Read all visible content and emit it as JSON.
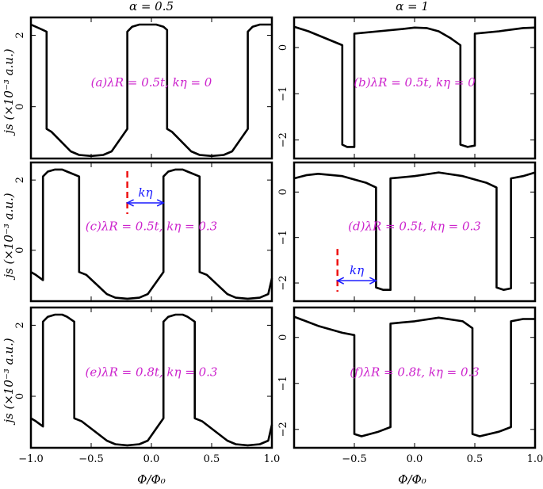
{
  "figure": {
    "column_titles": [
      "α = 0.5",
      "α = 1"
    ],
    "ylabel": "js (×10⁻³ a.u.)",
    "xlabel": "Φ/Φ₀",
    "x_ticks": [
      "−1.0",
      "−0.5",
      "0.0",
      "0.5",
      "1.0"
    ],
    "kη_label": "kη",
    "colors": {
      "curve": "#000000",
      "annotation": "#cc22cc",
      "arrow": "#1a1aff",
      "marker": "#ee1111"
    }
  },
  "chart_data": [
    {
      "type": "line",
      "title": "(a)λR = 0.5t, kη = 0",
      "xlim": [
        -1,
        1
      ],
      "ylim": [
        -1.45,
        2.5
      ],
      "y_ticks": [
        {
          "v": 2,
          "t": "2"
        },
        {
          "v": 0,
          "t": "0"
        }
      ],
      "x": [
        -1.0,
        -0.9,
        -0.87,
        -0.87,
        -0.83,
        -0.67,
        -0.6,
        -0.5,
        -0.4,
        -0.33,
        -0.2,
        -0.2,
        -0.16,
        -0.1,
        -0.04,
        0.0,
        0.04,
        0.1,
        0.13,
        0.13,
        0.17,
        0.33,
        0.4,
        0.5,
        0.6,
        0.67,
        0.8,
        0.8,
        0.84,
        0.9,
        0.96,
        1.0
      ],
      "y": [
        2.3,
        2.15,
        2.1,
        -0.62,
        -0.7,
        -1.25,
        -1.35,
        -1.38,
        -1.35,
        -1.25,
        -0.62,
        2.1,
        2.24,
        2.3,
        2.3,
        2.3,
        2.3,
        2.24,
        2.15,
        -0.62,
        -0.7,
        -1.25,
        -1.35,
        -1.38,
        -1.35,
        -1.25,
        -0.62,
        2.1,
        2.24,
        2.3,
        2.3,
        2.3
      ]
    },
    {
      "type": "line",
      "title": "(b)λR = 0.5t, kη = 0",
      "xlim": [
        -1,
        1
      ],
      "ylim": [
        -2.4,
        0.65
      ],
      "y_ticks": [
        {
          "v": 0,
          "t": "0"
        },
        {
          "v": -1,
          "t": "−1"
        },
        {
          "v": -2,
          "t": "−2"
        }
      ],
      "x": [
        -1.0,
        -0.88,
        -0.6,
        -0.6,
        -0.56,
        -0.5,
        -0.5,
        -0.3,
        -0.1,
        0.0,
        0.1,
        0.2,
        0.3,
        0.38,
        0.38,
        0.44,
        0.5,
        0.5,
        0.7,
        0.9,
        1.0
      ],
      "y": [
        0.45,
        0.35,
        0.05,
        -2.1,
        -2.15,
        -2.15,
        0.3,
        0.35,
        0.4,
        0.43,
        0.42,
        0.35,
        0.2,
        0.05,
        -2.1,
        -2.15,
        -2.12,
        0.3,
        0.35,
        0.42,
        0.43
      ]
    },
    {
      "type": "line",
      "title": "(c)λR = 0.5t, kη = 0.3",
      "xlim": [
        -1,
        1
      ],
      "ylim": [
        -1.45,
        2.5
      ],
      "y_ticks": [
        {
          "v": 2,
          "t": "2"
        },
        {
          "v": 0,
          "t": "0"
        }
      ],
      "x": [
        -1.0,
        -0.96,
        -0.9,
        -0.9,
        -0.86,
        -0.8,
        -0.74,
        -0.7,
        -0.6,
        -0.6,
        -0.54,
        -0.37,
        -0.3,
        -0.2,
        -0.1,
        -0.03,
        0.1,
        0.1,
        0.14,
        0.2,
        0.26,
        0.3,
        0.4,
        0.4,
        0.46,
        0.63,
        0.7,
        0.8,
        0.9,
        0.97,
        1.0
      ],
      "y": [
        -0.62,
        -0.7,
        -0.85,
        2.1,
        2.24,
        2.3,
        2.3,
        2.24,
        2.1,
        -0.62,
        -0.7,
        -1.25,
        -1.35,
        -1.38,
        -1.35,
        -1.25,
        -0.62,
        2.1,
        2.24,
        2.3,
        2.3,
        2.24,
        2.1,
        -0.62,
        -0.7,
        -1.25,
        -1.35,
        -1.38,
        -1.35,
        -1.25,
        -0.8
      ],
      "marker_x": -0.2,
      "arrow": {
        "from": -0.2,
        "to": 0.1,
        "y": 1.35
      }
    },
    {
      "type": "line",
      "title": "(d)λR = 0.5t, kη = 0.3",
      "xlim": [
        -1,
        1
      ],
      "ylim": [
        -2.4,
        0.65
      ],
      "y_ticks": [
        {
          "v": 0,
          "t": "0"
        },
        {
          "v": -1,
          "t": "−1"
        },
        {
          "v": -2,
          "t": "−2"
        }
      ],
      "x": [
        -1.0,
        -0.9,
        -0.8,
        -0.6,
        -0.4,
        -0.32,
        -0.32,
        -0.26,
        -0.2,
        -0.2,
        0.0,
        0.2,
        0.4,
        0.6,
        0.68,
        0.68,
        0.74,
        0.8,
        0.8,
        0.9,
        1.0
      ],
      "y": [
        0.3,
        0.37,
        0.4,
        0.35,
        0.2,
        0.1,
        -2.1,
        -2.15,
        -2.15,
        0.3,
        0.35,
        0.43,
        0.35,
        0.2,
        0.1,
        -2.1,
        -2.15,
        -2.12,
        0.3,
        0.35,
        0.43
      ],
      "marker_x": -0.64,
      "arrow": {
        "from": -0.64,
        "to": -0.32,
        "y": -1.95
      }
    },
    {
      "type": "line",
      "title": "(e)λR = 0.8t, kη = 0.3",
      "xlim": [
        -1,
        1
      ],
      "ylim": [
        -1.45,
        2.5
      ],
      "y_ticks": [
        {
          "v": 2,
          "t": "2"
        },
        {
          "v": 0,
          "t": "0"
        }
      ],
      "x": [
        -1.0,
        -0.96,
        -0.9,
        -0.9,
        -0.86,
        -0.8,
        -0.74,
        -0.7,
        -0.64,
        -0.64,
        -0.58,
        -0.37,
        -0.3,
        -0.2,
        -0.1,
        -0.03,
        0.1,
        0.1,
        0.14,
        0.2,
        0.26,
        0.3,
        0.36,
        0.36,
        0.42,
        0.63,
        0.7,
        0.8,
        0.9,
        0.97,
        1.0
      ],
      "y": [
        -0.62,
        -0.7,
        -0.85,
        2.1,
        2.24,
        2.3,
        2.3,
        2.24,
        2.1,
        -0.62,
        -0.7,
        -1.25,
        -1.35,
        -1.38,
        -1.35,
        -1.25,
        -0.62,
        2.1,
        2.24,
        2.3,
        2.3,
        2.24,
        2.1,
        -0.62,
        -0.7,
        -1.25,
        -1.35,
        -1.38,
        -1.35,
        -1.25,
        -0.8
      ]
    },
    {
      "type": "line",
      "title": "(f)λR = 0.8t, kη = 0.3",
      "xlim": [
        -1,
        1
      ],
      "ylim": [
        -2.4,
        0.65
      ],
      "y_ticks": [
        {
          "v": 0,
          "t": "0"
        },
        {
          "v": -1,
          "t": "−1"
        },
        {
          "v": -2,
          "t": "−2"
        }
      ],
      "x": [
        -1.0,
        -0.9,
        -0.8,
        -0.6,
        -0.5,
        -0.5,
        -0.44,
        -0.3,
        -0.2,
        -0.2,
        0.0,
        0.2,
        0.4,
        0.48,
        0.48,
        0.54,
        0.7,
        0.8,
        0.8,
        0.9,
        1.0
      ],
      "y": [
        0.45,
        0.35,
        0.25,
        0.1,
        0.05,
        -2.1,
        -2.15,
        -2.05,
        -1.95,
        0.3,
        0.35,
        0.43,
        0.35,
        0.2,
        -2.1,
        -2.15,
        -2.05,
        -1.95,
        0.35,
        0.4,
        0.4
      ]
    }
  ]
}
